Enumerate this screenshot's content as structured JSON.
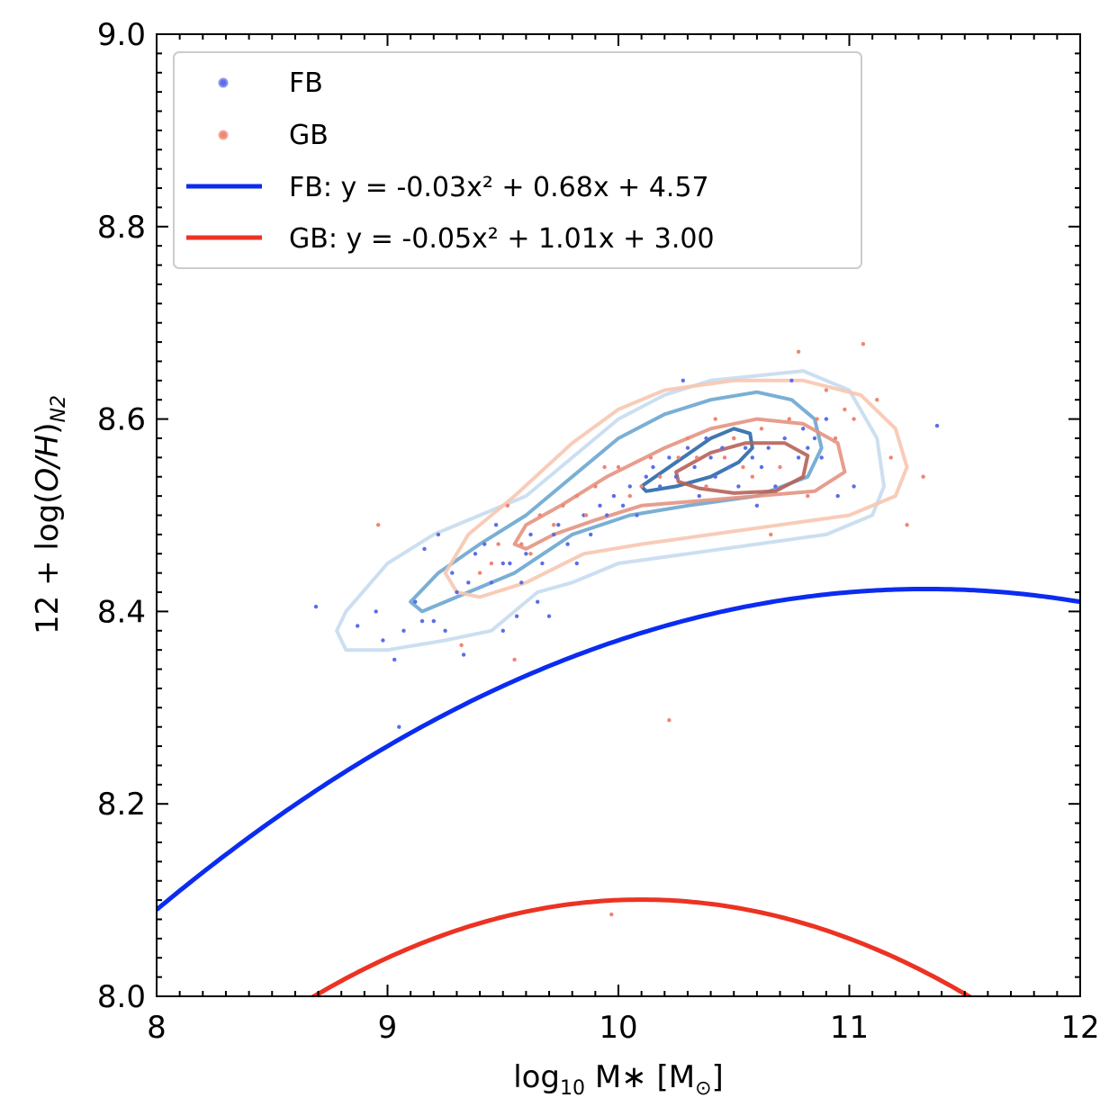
{
  "chart_data": {
    "type": "scatter",
    "title": "",
    "xlabel": {
      "base": "log",
      "sub": "10",
      "main": " M",
      "star": "∗",
      "unit_open": " [M",
      "sun": "⊙",
      "unit_close": "]"
    },
    "ylabel": {
      "prefix": "12 + log(",
      "italic": "O/H",
      "suffix": ")",
      "sub": "N2"
    },
    "xlim": [
      8,
      12
    ],
    "ylim": [
      8.0,
      9.0
    ],
    "x_ticks": [
      "8",
      "9",
      "10",
      "11",
      "12"
    ],
    "y_ticks": [
      "8.0",
      "8.2",
      "8.4",
      "8.6",
      "8.8",
      "9.0"
    ],
    "grid": false,
    "legend_placement": "top-left",
    "colors": {
      "fb_points": "#5a6ee8",
      "gb_points": "#f08572",
      "fb_fit": "#0b2cf0",
      "gb_fit": "#ec3323"
    },
    "legend": [
      "FB",
      "GB",
      "FB: y = -0.03x² + 0.68x + 4.57",
      "GB: y = -0.05x² + 1.01x + 3.00"
    ],
    "series": [
      {
        "name": "FB",
        "kind": "points",
        "color": "#5a6ee8",
        "points": [
          [
            8.69,
            8.405
          ],
          [
            8.87,
            8.385
          ],
          [
            8.95,
            8.4
          ],
          [
            8.98,
            8.37
          ],
          [
            9.03,
            8.35
          ],
          [
            9.05,
            8.28
          ],
          [
            9.07,
            8.38
          ],
          [
            9.12,
            8.41
          ],
          [
            9.15,
            8.39
          ],
          [
            9.16,
            8.465
          ],
          [
            9.2,
            8.39
          ],
          [
            9.22,
            8.48
          ],
          [
            9.25,
            8.38
          ],
          [
            9.28,
            8.44
          ],
          [
            9.3,
            8.42
          ],
          [
            9.33,
            8.355
          ],
          [
            9.35,
            8.43
          ],
          [
            9.38,
            8.46
          ],
          [
            9.42,
            8.47
          ],
          [
            9.45,
            8.43
          ],
          [
            9.47,
            8.49
          ],
          [
            9.5,
            8.45
          ],
          [
            9.5,
            8.38
          ],
          [
            9.53,
            8.45
          ],
          [
            9.56,
            8.395
          ],
          [
            9.58,
            8.43
          ],
          [
            9.6,
            8.46
          ],
          [
            9.62,
            8.48
          ],
          [
            9.65,
            8.41
          ],
          [
            9.67,
            8.45
          ],
          [
            9.7,
            8.395
          ],
          [
            9.72,
            8.48
          ],
          [
            9.74,
            8.49
          ],
          [
            9.78,
            8.47
          ],
          [
            9.82,
            8.45
          ],
          [
            9.85,
            8.5
          ],
          [
            9.88,
            8.48
          ],
          [
            9.92,
            8.51
          ],
          [
            9.95,
            8.5
          ],
          [
            9.98,
            8.52
          ],
          [
            10.02,
            8.51
          ],
          [
            10.05,
            8.53
          ],
          [
            10.08,
            8.5
          ],
          [
            10.12,
            8.54
          ],
          [
            10.15,
            8.55
          ],
          [
            10.18,
            8.53
          ],
          [
            10.22,
            8.56
          ],
          [
            10.25,
            8.54
          ],
          [
            10.28,
            8.64
          ],
          [
            10.3,
            8.57
          ],
          [
            10.33,
            8.55
          ],
          [
            10.35,
            8.52
          ],
          [
            10.38,
            8.58
          ],
          [
            10.4,
            8.56
          ],
          [
            10.42,
            8.54
          ],
          [
            10.45,
            8.57
          ],
          [
            10.48,
            8.55
          ],
          [
            10.5,
            8.58
          ],
          [
            10.52,
            8.53
          ],
          [
            10.55,
            8.57
          ],
          [
            10.58,
            8.56
          ],
          [
            10.6,
            8.51
          ],
          [
            10.62,
            8.55
          ],
          [
            10.65,
            8.57
          ],
          [
            10.68,
            8.53
          ],
          [
            10.72,
            8.58
          ],
          [
            10.75,
            8.64
          ],
          [
            10.78,
            8.56
          ],
          [
            10.8,
            8.59
          ],
          [
            10.82,
            8.57
          ],
          [
            10.85,
            8.58
          ],
          [
            10.88,
            8.56
          ],
          [
            10.9,
            8.6
          ],
          [
            10.95,
            8.52
          ],
          [
            11.02,
            8.53
          ],
          [
            11.38,
            8.593
          ]
        ]
      },
      {
        "name": "GB",
        "kind": "points",
        "color": "#f08572",
        "points": [
          [
            8.96,
            8.49
          ],
          [
            9.32,
            8.365
          ],
          [
            9.4,
            8.44
          ],
          [
            9.45,
            8.45
          ],
          [
            9.48,
            8.47
          ],
          [
            9.52,
            8.51
          ],
          [
            9.55,
            8.35
          ],
          [
            9.58,
            8.47
          ],
          [
            9.62,
            8.46
          ],
          [
            9.66,
            8.5
          ],
          [
            9.72,
            8.49
          ],
          [
            9.76,
            8.51
          ],
          [
            9.82,
            8.52
          ],
          [
            9.86,
            8.5
          ],
          [
            9.9,
            8.53
          ],
          [
            9.94,
            8.55
          ],
          [
            9.97,
            8.085
          ],
          [
            10.0,
            8.55
          ],
          [
            10.05,
            8.52
          ],
          [
            10.1,
            8.53
          ],
          [
            10.14,
            8.56
          ],
          [
            10.18,
            8.54
          ],
          [
            10.22,
            8.287
          ],
          [
            10.26,
            8.56
          ],
          [
            10.3,
            8.58
          ],
          [
            10.34,
            8.56
          ],
          [
            10.38,
            8.53
          ],
          [
            10.42,
            8.6
          ],
          [
            10.46,
            8.56
          ],
          [
            10.5,
            8.58
          ],
          [
            10.54,
            8.55
          ],
          [
            10.58,
            8.54
          ],
          [
            10.62,
            8.59
          ],
          [
            10.66,
            8.48
          ],
          [
            10.7,
            8.55
          ],
          [
            10.74,
            8.6
          ],
          [
            10.78,
            8.67
          ],
          [
            10.82,
            8.52
          ],
          [
            10.86,
            8.6
          ],
          [
            10.9,
            8.63
          ],
          [
            10.94,
            8.58
          ],
          [
            10.98,
            8.61
          ],
          [
            11.02,
            8.6
          ],
          [
            11.06,
            8.678
          ],
          [
            11.12,
            8.62
          ],
          [
            11.18,
            8.56
          ],
          [
            11.25,
            8.49
          ],
          [
            11.32,
            8.54
          ]
        ]
      },
      {
        "name": "FB: y = -0.03x² + 0.68x + 4.57",
        "kind": "fit",
        "color": "#0b2cf0",
        "coefficients": [
          -0.03,
          0.68,
          4.57
        ]
      },
      {
        "name": "GB: y = -0.05x² + 1.01x + 3.00",
        "kind": "fit",
        "color": "#ec3323",
        "coefficients": [
          -0.05,
          1.01,
          3.0
        ]
      }
    ],
    "contours": [
      {
        "group": "FB",
        "level": "outer",
        "color": "#c7dcef",
        "points": [
          [
            8.8,
            8.37
          ],
          [
            8.78,
            8.38
          ],
          [
            8.82,
            8.4
          ],
          [
            9.0,
            8.45
          ],
          [
            9.2,
            8.48
          ],
          [
            9.4,
            8.5
          ],
          [
            9.6,
            8.52
          ],
          [
            9.8,
            8.56
          ],
          [
            10.0,
            8.6
          ],
          [
            10.2,
            8.625
          ],
          [
            10.4,
            8.64
          ],
          [
            10.6,
            8.645
          ],
          [
            10.8,
            8.65
          ],
          [
            11.0,
            8.63
          ],
          [
            11.12,
            8.58
          ],
          [
            11.15,
            8.53
          ],
          [
            11.1,
            8.5
          ],
          [
            10.9,
            8.48
          ],
          [
            10.6,
            8.47
          ],
          [
            10.3,
            8.46
          ],
          [
            10.0,
            8.45
          ],
          [
            9.8,
            8.43
          ],
          [
            9.65,
            8.42
          ],
          [
            9.45,
            8.38
          ],
          [
            9.25,
            8.37
          ],
          [
            9.0,
            8.36
          ],
          [
            8.82,
            8.36
          ]
        ]
      },
      {
        "group": "FB",
        "level": "middle",
        "color": "#6ba6d0",
        "points": [
          [
            9.1,
            8.41
          ],
          [
            9.22,
            8.44
          ],
          [
            9.4,
            8.47
          ],
          [
            9.6,
            8.5
          ],
          [
            9.8,
            8.54
          ],
          [
            10.0,
            8.58
          ],
          [
            10.2,
            8.605
          ],
          [
            10.4,
            8.62
          ],
          [
            10.6,
            8.628
          ],
          [
            10.75,
            8.62
          ],
          [
            10.85,
            8.6
          ],
          [
            10.88,
            8.57
          ],
          [
            10.82,
            8.54
          ],
          [
            10.6,
            8.52
          ],
          [
            10.3,
            8.51
          ],
          [
            10.05,
            8.5
          ],
          [
            9.8,
            8.48
          ],
          [
            9.55,
            8.44
          ],
          [
            9.35,
            8.42
          ],
          [
            9.15,
            8.4
          ]
        ]
      },
      {
        "group": "FB",
        "level": "inner",
        "color": "#2a68a8",
        "points": [
          [
            10.1,
            8.53
          ],
          [
            10.25,
            8.555
          ],
          [
            10.4,
            8.58
          ],
          [
            10.5,
            8.59
          ],
          [
            10.57,
            8.585
          ],
          [
            10.58,
            8.57
          ],
          [
            10.52,
            8.555
          ],
          [
            10.4,
            8.54
          ],
          [
            10.25,
            8.53
          ],
          [
            10.12,
            8.525
          ]
        ]
      },
      {
        "group": "GB",
        "level": "outer",
        "color": "#f7c6b0",
        "points": [
          [
            9.3,
            8.42
          ],
          [
            9.25,
            8.44
          ],
          [
            9.35,
            8.48
          ],
          [
            9.55,
            8.52
          ],
          [
            9.8,
            8.575
          ],
          [
            10.0,
            8.61
          ],
          [
            10.2,
            8.63
          ],
          [
            10.5,
            8.64
          ],
          [
            10.8,
            8.64
          ],
          [
            11.05,
            8.625
          ],
          [
            11.2,
            8.59
          ],
          [
            11.25,
            8.55
          ],
          [
            11.2,
            8.52
          ],
          [
            11.0,
            8.5
          ],
          [
            10.7,
            8.49
          ],
          [
            10.4,
            8.48
          ],
          [
            10.1,
            8.47
          ],
          [
            9.85,
            8.46
          ],
          [
            9.6,
            8.43
          ],
          [
            9.4,
            8.415
          ]
        ]
      },
      {
        "group": "GB",
        "level": "middle",
        "color": "#e39482",
        "points": [
          [
            9.55,
            8.47
          ],
          [
            9.6,
            8.49
          ],
          [
            9.75,
            8.51
          ],
          [
            9.95,
            8.54
          ],
          [
            10.2,
            8.57
          ],
          [
            10.4,
            8.59
          ],
          [
            10.6,
            8.6
          ],
          [
            10.8,
            8.595
          ],
          [
            10.95,
            8.575
          ],
          [
            10.98,
            8.545
          ],
          [
            10.85,
            8.525
          ],
          [
            10.6,
            8.52
          ],
          [
            10.35,
            8.515
          ],
          [
            10.1,
            8.51
          ],
          [
            9.9,
            8.495
          ],
          [
            9.72,
            8.48
          ],
          [
            9.6,
            8.465
          ]
        ]
      },
      {
        "group": "GB",
        "level": "inner",
        "color": "#b66258",
        "points": [
          [
            10.25,
            8.545
          ],
          [
            10.4,
            8.565
          ],
          [
            10.55,
            8.575
          ],
          [
            10.72,
            8.575
          ],
          [
            10.82,
            8.562
          ],
          [
            10.8,
            8.54
          ],
          [
            10.68,
            8.525
          ],
          [
            10.5,
            8.523
          ],
          [
            10.35,
            8.528
          ],
          [
            10.26,
            8.535
          ]
        ]
      }
    ]
  }
}
